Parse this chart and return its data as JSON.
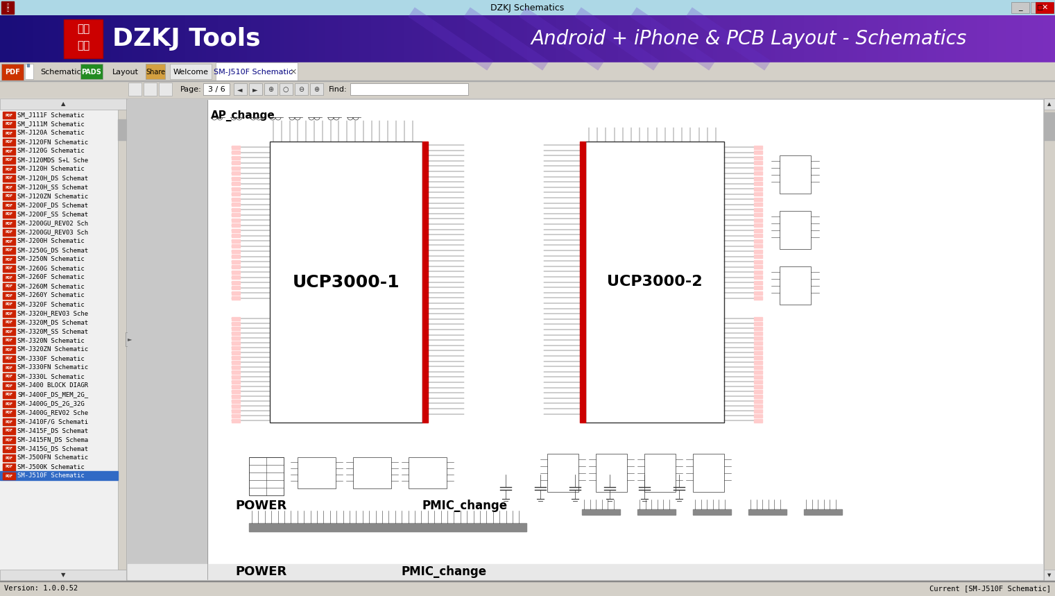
{
  "title_bar_text": "DZKJ Schematics",
  "title_bar_bg": "#add8e6",
  "header_bg": "#2a1a8a",
  "header_bg2": "#6b1faa",
  "header_logo_text_top": "东震",
  "header_logo_text_bot": "科技",
  "header_logo_text2": "DZKJ Tools",
  "header_subtitle": "Android + iPhone & PCB Layout - Schematics",
  "logo_box_color": "#cc0000",
  "toolbar_bg": "#d4d0c8",
  "sidebar_bg": "#f0f0f0",
  "schematic_area_bg": "#c8c8c8",
  "schematic_canvas_bg": "#ffffff",
  "left_panel_label": "UCP3000-1",
  "right_panel_label": "UCP3000-2",
  "top_label": "AP_change",
  "bottom_left_label": "POWER",
  "bottom_right_label": "PMIC_change",
  "status_bar_text": "Current [SM-J510F Schematic]",
  "status_bar_bg": "#d4d0c8",
  "version_text": "Version: 1.0.0.52",
  "sidebar_items": [
    "SM_J111F Schematic",
    "SM_J111M Schematic",
    "SM-J120A Schematic",
    "SM-J120FN Schematic",
    "SM-J120G Schematic",
    "SM-J120MDS S+L Sche",
    "SM-J120H Schematic",
    "SM-J120H_DS Schemat",
    "SM-J120H_SS Schemat",
    "SM-J120ZN Schematic",
    "SM-J200F_DS Schemat",
    "SM-J200F_SS Schemat",
    "SM-J200GU_REV02 Sch",
    "SM-J200GU_REV03 Sch",
    "SM-J200H Schematic",
    "SM-J250G_DS Schemat",
    "SM-J250N Schematic",
    "SM-J260G Schematic",
    "SM-J260F Schematic",
    "SM-J260M Schematic",
    "SM-J260Y Schematic",
    "SM-J320F Schematic",
    "SM-J320H_REV03 Sche",
    "SM-J320M_DS Schemat",
    "SM-J320M_SS Schemat",
    "SM-J320N Schematic",
    "SM-J320ZN Schematic",
    "SM-J330F Schematic",
    "SM-J330FN Schematic",
    "SM-J330L Schematic",
    "SM-J400 BLOCK DIAGR",
    "SM-J400F_DS_MEM_2G_",
    "SM-J400G_DS_2G_32G ",
    "SM-J400G_REV02 Sche",
    "SM-J410F/G Schemati",
    "SM-J415F_DS Schemat",
    "SM-J415FN_DS Schema",
    "SM-J415G_DS Schemat",
    "SM-J500FN Schematic",
    "SM-J500K Schematic",
    "SM-J510F Schematic"
  ],
  "page_info": "3 / 6",
  "selected_item_idx": 40
}
